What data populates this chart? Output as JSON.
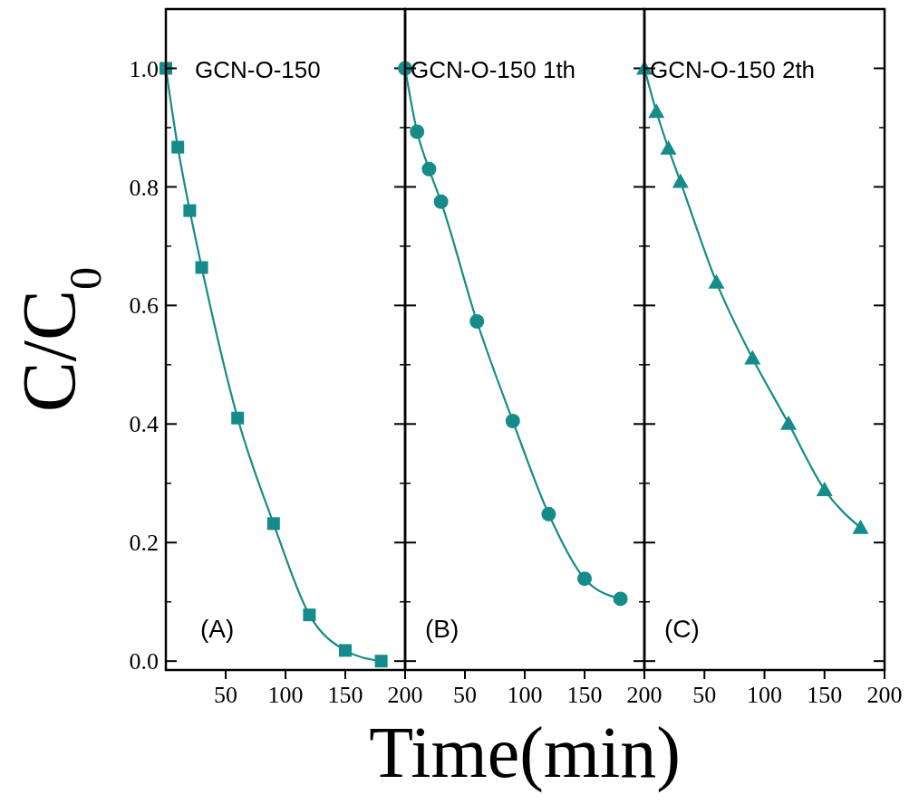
{
  "chart_data": [
    {
      "type": "line",
      "ylabel": "C/C$_{0}$",
      "x": [
        0,
        10,
        20,
        30,
        60,
        90,
        120,
        150,
        180
      ],
      "series": [
        {
          "color": "#158c89",
          "values": [
            1.0,
            0.867,
            0.76,
            0.664,
            0.41,
            0.232,
            0.078,
            0.018,
            0.0
          ],
          "marker": "square"
        }
      ],
      "xlim": [
        0,
        200
      ],
      "xticks": [
        50,
        100,
        150,
        200
      ],
      "ylim": [
        -0.015,
        1.1
      ],
      "yticks": [
        {
          "value": 0,
          "label": "0.0"
        },
        {
          "value": 0.2,
          "label": "0.2"
        },
        {
          "value": 0.4,
          "label": "0.4"
        },
        {
          "value": 0.6,
          "label": "0.6"
        },
        {
          "value": 0.8,
          "label": "0.8"
        },
        {
          "value": 1,
          "label": "1.0"
        }
      ],
      "annotations": [
        "GCN-O-150",
        "(A)"
      ]
    },
    {
      "type": "line",
      "xlabel": "Time(min)",
      "x": [
        0,
        10,
        20,
        30,
        60,
        90,
        120,
        150,
        180
      ],
      "series": [
        {
          "color": "#158c89",
          "values": [
            1.0,
            0.893,
            0.83,
            0.775,
            0.573,
            0.405,
            0.248,
            0.139,
            0.105
          ],
          "marker": "circle"
        }
      ],
      "xlim": [
        0,
        200
      ],
      "xticks": [
        50,
        100,
        150,
        200
      ],
      "ylim": [
        -0.015,
        1.1
      ],
      "yticks": [
        {
          "value": 0,
          "label": null
        },
        {
          "value": 0.2,
          "label": null
        },
        {
          "value": 0.4,
          "label": null
        },
        {
          "value": 0.6,
          "label": null
        },
        {
          "value": 0.8,
          "label": null
        },
        {
          "value": 1,
          "label": null
        }
      ],
      "tick_labels": "x",
      "annotations": [
        "GCN-O-150 1th",
        "(B)"
      ]
    },
    {
      "type": "line",
      "x": [
        0,
        10,
        20,
        30,
        60,
        90,
        120,
        150,
        180
      ],
      "series": [
        {
          "color": "#158c89",
          "values": [
            1.0,
            0.927,
            0.865,
            0.809,
            0.639,
            0.511,
            0.401,
            0.289,
            0.225
          ],
          "marker": "triangle"
        }
      ],
      "xlim": [
        0,
        200
      ],
      "xticks": [
        50,
        100,
        150,
        200
      ],
      "ylim": [
        -0.015,
        1.1
      ],
      "yticks": [
        {
          "value": 0,
          "label": null
        },
        {
          "value": 0.2,
          "label": null
        },
        {
          "value": 0.4,
          "label": null
        },
        {
          "value": 0.6,
          "label": null
        },
        {
          "value": 0.8,
          "label": null
        },
        {
          "value": 1,
          "label": null
        }
      ],
      "tick_labels": "x",
      "annotations": [
        "GCN-O-150 2th",
        "(C)"
      ]
    }
  ]
}
